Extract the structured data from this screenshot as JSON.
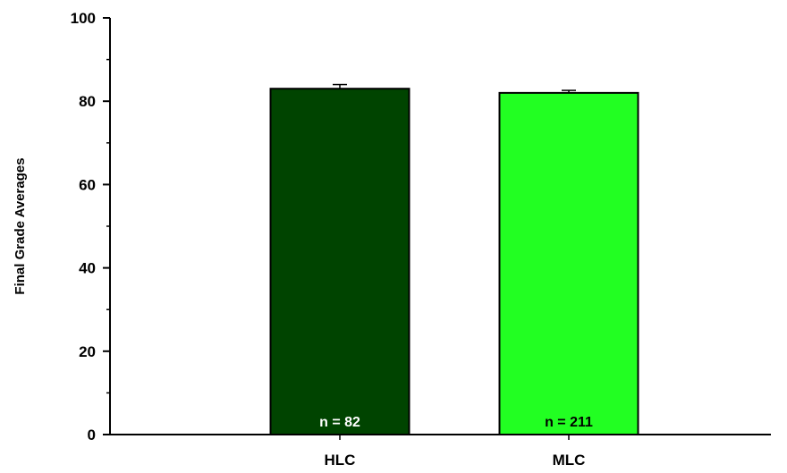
{
  "chart_data": {
    "type": "bar",
    "title": "",
    "xlabel": "",
    "ylabel": "Final Grade Averages",
    "ylim": [
      0,
      100
    ],
    "yticks": [
      0,
      20,
      40,
      60,
      80,
      100
    ],
    "categories": [
      "HLC",
      "MLC"
    ],
    "values": [
      83,
      82
    ],
    "error": [
      1.0,
      0.6
    ],
    "annotations": [
      "n = 82",
      "n = 211"
    ],
    "bar_colors": [
      "#004400",
      "#22ff22"
    ],
    "annotation_colors": [
      "#ffffff",
      "#000000"
    ],
    "grid": false,
    "legend": "none"
  }
}
